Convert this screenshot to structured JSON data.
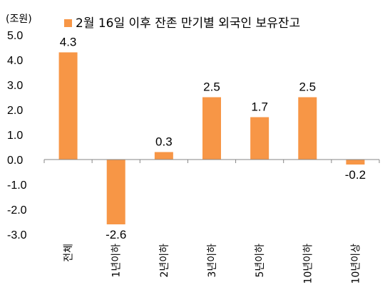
{
  "chart_data": {
    "type": "bar",
    "unit": "(조원)",
    "categories": [
      "전체",
      "1년이하",
      "2년이하",
      "3년이하",
      "5년이하",
      "10년이하",
      "10년이상"
    ],
    "series": [
      {
        "name": "2월 16일 이후 잔존 만기별 외국인 보유잔고",
        "values": [
          4.3,
          -2.6,
          0.3,
          2.5,
          1.7,
          2.5,
          -0.2
        ],
        "color": "#F79646"
      }
    ],
    "data_labels": [
      "4.3",
      "-2.6",
      "0.3",
      "2.5",
      "1.7",
      "2.5",
      "-0.2"
    ],
    "yticks": [
      "5.0",
      "4.0",
      "3.0",
      "2.0",
      "1.0",
      "0.0",
      "-1.0",
      "-2.0",
      "-3.0"
    ],
    "ytick_values": [
      5,
      4,
      3,
      2,
      1,
      0,
      -1,
      -2,
      -3
    ],
    "ylim": [
      -3,
      5
    ],
    "grid": false,
    "legend_position": "top"
  }
}
